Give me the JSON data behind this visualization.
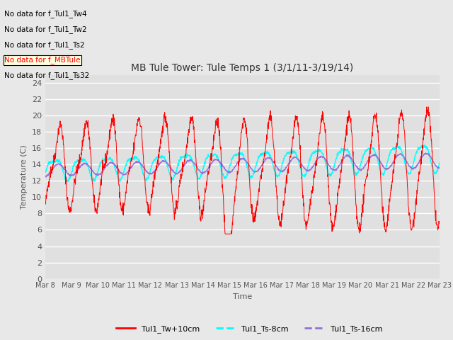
{
  "title": "MB Tule Tower: Tule Temps 1 (3/1/11-3/19/14)",
  "xlabel": "Time",
  "ylabel": "Temperature (C)",
  "ylim": [
    0,
    25
  ],
  "yticks": [
    0,
    2,
    4,
    6,
    8,
    10,
    12,
    14,
    16,
    18,
    20,
    22,
    24
  ],
  "no_data_labels": [
    "No data for f_Tul1_Tw4",
    "No data for f_Tul1_Tw2",
    "No data for f_Tul1_Ts2",
    "No data for f_MBTule",
    "No data for f_Tul1_Ts32"
  ],
  "legend_entries": [
    "Tul1_Tw+10cm",
    "Tul1_Ts-8cm",
    "Tul1_Ts-16cm"
  ],
  "line_colors": [
    "red",
    "cyan",
    "mediumpurple"
  ],
  "xtick_labels": [
    "Mar 8",
    "Mar 9",
    "Mar 10",
    "Mar 11",
    "Mar 12",
    "Mar 13",
    "Mar 14",
    "Mar 15",
    "Mar 16",
    "Mar 17",
    "Mar 18",
    "Mar 19",
    "Mar 20",
    "Mar 21",
    "Mar 22",
    "Mar 23"
  ],
  "background_color": "#e8e8e8",
  "plot_bg_color": "#e0e0e0",
  "grid_color": "white"
}
